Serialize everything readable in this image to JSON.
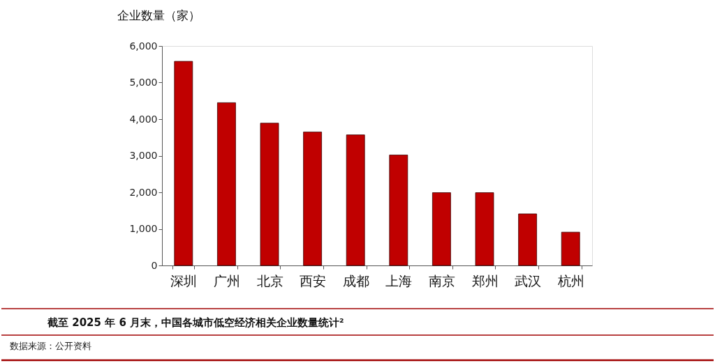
{
  "chart_data": {
    "type": "bar",
    "title": "截至 2025 年 6 月末，中国各城市低空经济相关企业数量统计²",
    "ylabel": "企业数量（家）",
    "categories": [
      "深圳",
      "广州",
      "北京",
      "西安",
      "成都",
      "上海",
      "南京",
      "郑州",
      "武汉",
      "杭州"
    ],
    "values": [
      5580,
      4450,
      3890,
      3650,
      3570,
      3020,
      1990,
      1990,
      1410,
      910
    ],
    "color": "#c00000",
    "ylim": [
      0,
      6000
    ],
    "yticks": [
      0,
      {
        "value": 1000,
        "label": "1,000"
      },
      {
        "value": 2000,
        "label": "2,000"
      },
      {
        "value": 3000,
        "label": "3,000"
      },
      {
        "value": 4000,
        "label": "4,000"
      },
      {
        "value": 5000,
        "label": "5,000"
      },
      {
        "value": 6000,
        "label": "6,000"
      }
    ],
    "grid": false,
    "annotations": [
      "数据来源：公开资料"
    ]
  }
}
